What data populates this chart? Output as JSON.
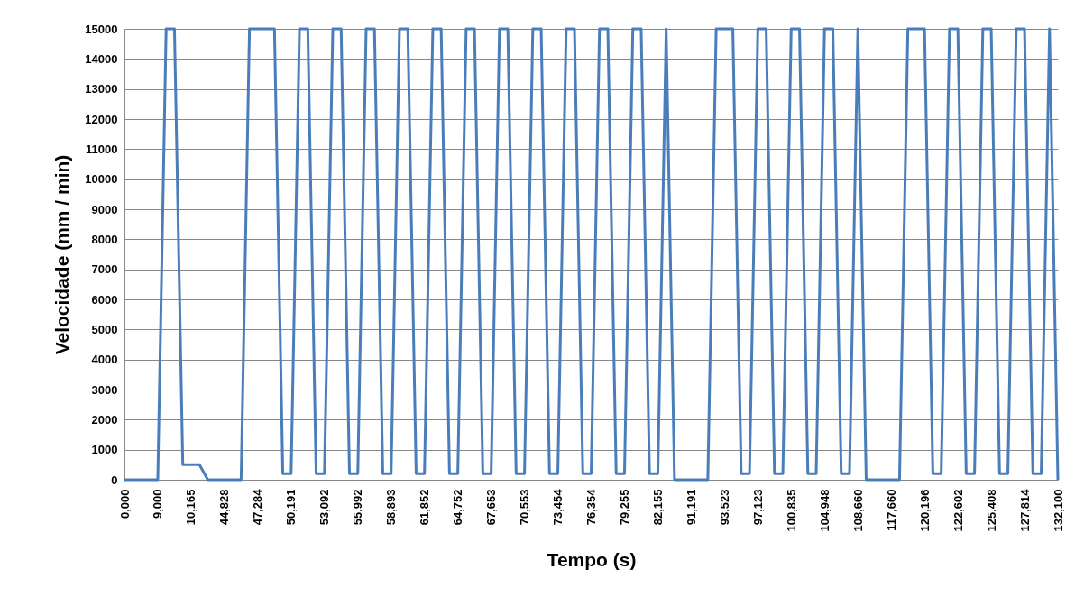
{
  "chart_data": {
    "type": "line",
    "xlabel": "Tempo (s)",
    "ylabel": "Velocidade (mm / min)",
    "color": "#4a7ebb",
    "grid": "y",
    "ylim": [
      0,
      15000
    ],
    "yticks": [
      0,
      1000,
      2000,
      3000,
      4000,
      5000,
      6000,
      7000,
      8000,
      9000,
      10000,
      11000,
      12000,
      13000,
      14000,
      15000
    ],
    "categories": [
      "0,000",
      null,
      null,
      null,
      "9,000",
      null,
      null,
      null,
      "10,165",
      null,
      null,
      null,
      "44,828",
      null,
      null,
      null,
      "47,284",
      null,
      null,
      null,
      "50,191",
      null,
      null,
      null,
      "53,092",
      null,
      null,
      null,
      "55,992",
      null,
      null,
      null,
      "58,893",
      null,
      null,
      null,
      "61,852",
      null,
      null,
      null,
      "64,752",
      null,
      null,
      null,
      "67,653",
      null,
      null,
      null,
      "70,553",
      null,
      null,
      null,
      "73,454",
      null,
      null,
      null,
      "76,354",
      null,
      null,
      null,
      "79,255",
      null,
      null,
      null,
      "82,155",
      null,
      null,
      null,
      "91,191",
      null,
      null,
      null,
      "93,523",
      null,
      null,
      null,
      "97,123",
      null,
      null,
      null,
      "100,835",
      null,
      null,
      null,
      "104,948",
      null,
      null,
      null,
      "108,660",
      null,
      null,
      null,
      "117,660",
      null,
      null,
      null,
      "120,196",
      null,
      null,
      null,
      "122,602",
      null,
      null,
      null,
      "125,408",
      null,
      null,
      null,
      "127,814",
      null,
      null,
      null,
      "132,100"
    ],
    "values": [
      0,
      0,
      0,
      0,
      0,
      15000,
      15000,
      500,
      500,
      500,
      0,
      0,
      0,
      0,
      0,
      15000,
      15000,
      15000,
      15000,
      200,
      200,
      15000,
      15000,
      200,
      200,
      15000,
      15000,
      200,
      200,
      15000,
      15000,
      200,
      200,
      15000,
      15000,
      200,
      200,
      15000,
      15000,
      200,
      200,
      15000,
      15000,
      200,
      200,
      15000,
      15000,
      200,
      200,
      15000,
      15000,
      200,
      200,
      15000,
      15000,
      200,
      200,
      15000,
      15000,
      200,
      200,
      15000,
      15000,
      200,
      200,
      15000,
      0,
      0,
      0,
      0,
      0,
      15000,
      15000,
      15000,
      200,
      200,
      15000,
      15000,
      200,
      200,
      15000,
      15000,
      200,
      200,
      15000,
      15000,
      200,
      200,
      15000,
      0,
      0,
      0,
      0,
      0,
      15000,
      15000,
      15000,
      200,
      200,
      15000,
      15000,
      200,
      200,
      15000,
      15000,
      200,
      200,
      15000,
      15000,
      200,
      200,
      15000,
      0
    ]
  }
}
